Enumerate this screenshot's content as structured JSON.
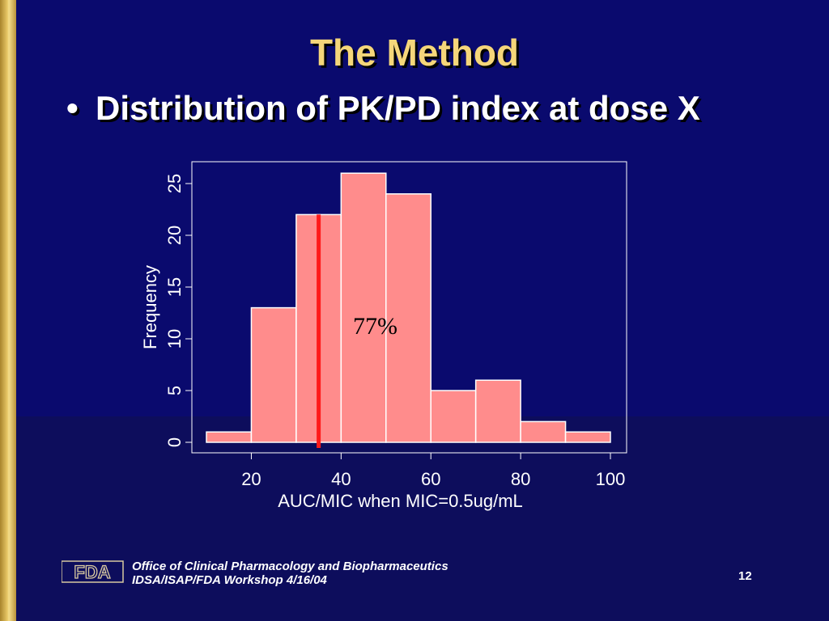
{
  "slide": {
    "title": "The Method",
    "bullet": "Distribution of PK/PD index at dose X",
    "annotation": "77%",
    "footer_line1": "Office of Clinical Pharmacology and Biopharmaceutics",
    "footer_line2": "IDSA/ISAP/FDA Workshop 4/16/04",
    "page_number": "12",
    "logo_text": "FDA"
  },
  "chart_data": {
    "type": "bar",
    "title": "",
    "xlabel": "AUC/MIC when MIC=0.5ug/mL",
    "ylabel": "Frequency",
    "bin_edges": [
      10,
      20,
      30,
      40,
      50,
      60,
      70,
      80,
      90,
      100
    ],
    "values": [
      1,
      13,
      22,
      26,
      24,
      5,
      6,
      2,
      1
    ],
    "xlim": [
      10,
      100
    ],
    "ylim": [
      0,
      25
    ],
    "x_ticks": [
      20,
      40,
      60,
      80,
      100
    ],
    "y_ticks": [
      0,
      5,
      10,
      15,
      20,
      25
    ],
    "reference_line_x": 35,
    "bar_color": "#ff8c8c",
    "line_color": "#ff1a1a"
  }
}
